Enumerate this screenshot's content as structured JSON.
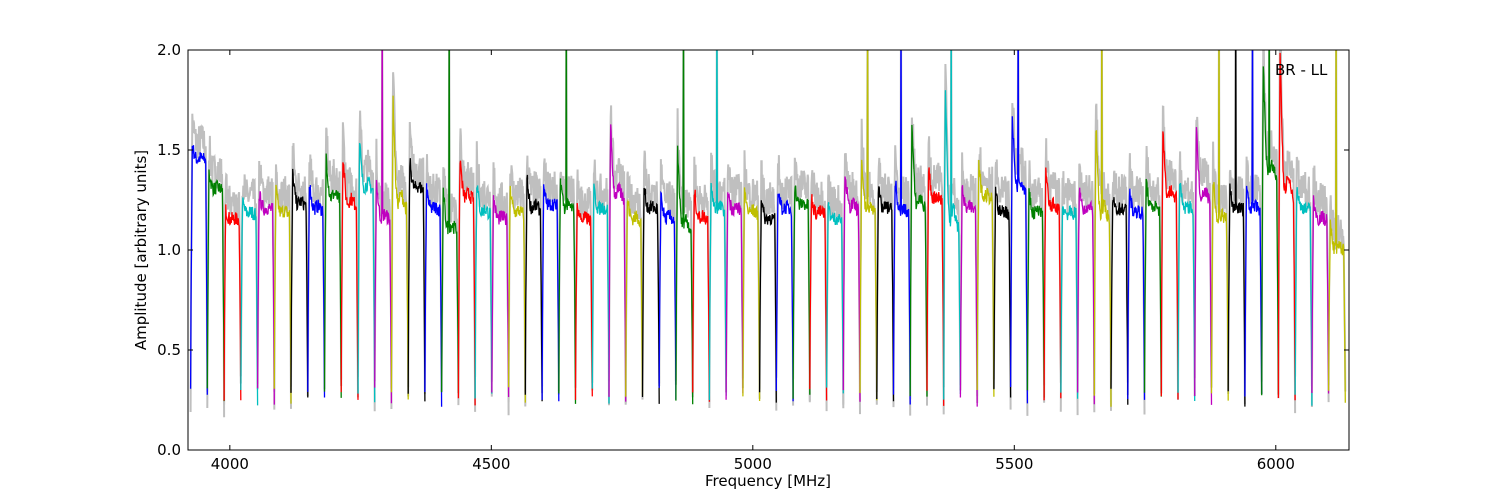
{
  "chart_data": {
    "type": "line",
    "title": "",
    "xlabel": "Frequency [MHz]",
    "ylabel": "Amplitude [arbitrary units]",
    "xlim": [
      3920,
      6140
    ],
    "ylim": [
      0.0,
      2.0
    ],
    "xticks": [
      4000,
      4500,
      5000,
      5500,
      6000
    ],
    "yticks": [
      0.0,
      0.5,
      1.0,
      1.5,
      2.0
    ],
    "ytick_labels": [
      "0.0",
      "0.5",
      "1.0",
      "1.5",
      "2.0"
    ],
    "annotation": "BR - LL",
    "grid": false,
    "legend": "none",
    "channel_width_mhz": 32,
    "envelope_color": "#bfbfbf",
    "series_colors": [
      "#0000ff",
      "#008000",
      "#ff0000",
      "#00bfbf",
      "#bf00bf",
      "#bfbf00",
      "#000000"
    ],
    "channels": [
      {
        "start": 3925,
        "level": 1.45,
        "peak": 1.52,
        "spike": null
      },
      {
        "start": 3957,
        "level": 1.3,
        "peak": 1.39,
        "spike": null
      },
      {
        "start": 3989,
        "level": 1.15,
        "peak": 1.2,
        "spike": null
      },
      {
        "start": 4021,
        "level": 1.18,
        "peak": 1.24,
        "spike": null
      },
      {
        "start": 4053,
        "level": 1.2,
        "peak": 1.28,
        "spike": null
      },
      {
        "start": 4085,
        "level": 1.18,
        "peak": 1.3,
        "spike": null
      },
      {
        "start": 4117,
        "level": 1.22,
        "peak": 1.38,
        "spike": null
      },
      {
        "start": 4149,
        "level": 1.2,
        "peak": 1.33,
        "spike": null
      },
      {
        "start": 4181,
        "level": 1.25,
        "peak": 1.47,
        "spike": null
      },
      {
        "start": 4213,
        "level": 1.22,
        "peak": 1.47,
        "spike": null
      },
      {
        "start": 4245,
        "level": 1.3,
        "peak": 1.53,
        "spike": null
      },
      {
        "start": 4277,
        "level": 1.15,
        "peak": 1.35,
        "spike": 2.0
      },
      {
        "start": 4309,
        "level": 1.2,
        "peak": 1.74,
        "spike": null
      },
      {
        "start": 4341,
        "level": 1.3,
        "peak": 1.44,
        "spike": null
      },
      {
        "start": 4373,
        "level": 1.2,
        "peak": 1.3,
        "spike": null
      },
      {
        "start": 4405,
        "level": 1.1,
        "peak": 1.28,
        "spike": 2.0
      },
      {
        "start": 4437,
        "level": 1.25,
        "peak": 1.46,
        "spike": null
      },
      {
        "start": 4469,
        "level": 1.18,
        "peak": 1.34,
        "spike": null
      },
      {
        "start": 4501,
        "level": 1.15,
        "peak": 1.26,
        "spike": null
      },
      {
        "start": 4533,
        "level": 1.18,
        "peak": 1.3,
        "spike": null
      },
      {
        "start": 4565,
        "level": 1.2,
        "peak": 1.36,
        "spike": null
      },
      {
        "start": 4597,
        "level": 1.22,
        "peak": 1.3,
        "spike": null
      },
      {
        "start": 4629,
        "level": 1.2,
        "peak": 1.35,
        "spike": 2.0
      },
      {
        "start": 4661,
        "level": 1.15,
        "peak": 1.22,
        "spike": null
      },
      {
        "start": 4693,
        "level": 1.2,
        "peak": 1.3,
        "spike": null
      },
      {
        "start": 4725,
        "level": 1.25,
        "peak": 1.6,
        "spike": null
      },
      {
        "start": 4757,
        "level": 1.15,
        "peak": 1.25,
        "spike": null
      },
      {
        "start": 4789,
        "level": 1.2,
        "peak": 1.31,
        "spike": null
      },
      {
        "start": 4821,
        "level": 1.15,
        "peak": 1.28,
        "spike": null
      },
      {
        "start": 4853,
        "level": 1.1,
        "peak": 1.5,
        "spike": 2.0
      },
      {
        "start": 4885,
        "level": 1.15,
        "peak": 1.3,
        "spike": null
      },
      {
        "start": 4917,
        "level": 1.2,
        "peak": 1.32,
        "spike": 2.0
      },
      {
        "start": 4949,
        "level": 1.2,
        "peak": 1.3,
        "spike": null
      },
      {
        "start": 4981,
        "level": 1.18,
        "peak": 1.3,
        "spike": null
      },
      {
        "start": 5013,
        "level": 1.15,
        "peak": 1.25,
        "spike": null
      },
      {
        "start": 5045,
        "level": 1.2,
        "peak": 1.3,
        "spike": null
      },
      {
        "start": 5077,
        "level": 1.22,
        "peak": 1.32,
        "spike": null
      },
      {
        "start": 5109,
        "level": 1.18,
        "peak": 1.26,
        "spike": null
      },
      {
        "start": 5141,
        "level": 1.15,
        "peak": 1.22,
        "spike": null
      },
      {
        "start": 5173,
        "level": 1.2,
        "peak": 1.4,
        "spike": null
      },
      {
        "start": 5205,
        "level": 1.18,
        "peak": 1.45,
        "spike": 2.0
      },
      {
        "start": 5237,
        "level": 1.2,
        "peak": 1.3,
        "spike": null
      },
      {
        "start": 5269,
        "level": 1.18,
        "peak": 1.35,
        "spike": 2.0
      },
      {
        "start": 5301,
        "level": 1.2,
        "peak": 1.62,
        "spike": null
      },
      {
        "start": 5333,
        "level": 1.25,
        "peak": 1.4,
        "spike": null
      },
      {
        "start": 5365,
        "level": 1.1,
        "peak": 1.8,
        "spike": 2.0
      },
      {
        "start": 5397,
        "level": 1.2,
        "peak": 1.3,
        "spike": null
      },
      {
        "start": 5429,
        "level": 1.25,
        "peak": 1.42,
        "spike": null
      },
      {
        "start": 5461,
        "level": 1.18,
        "peak": 1.3,
        "spike": null
      },
      {
        "start": 5493,
        "level": 1.3,
        "peak": 1.65,
        "spike": 2.0
      },
      {
        "start": 5525,
        "level": 1.18,
        "peak": 1.28,
        "spike": null
      },
      {
        "start": 5557,
        "level": 1.2,
        "peak": 1.4,
        "spike": null
      },
      {
        "start": 5589,
        "level": 1.18,
        "peak": 1.22,
        "spike": null
      },
      {
        "start": 5621,
        "level": 1.2,
        "peak": 1.3,
        "spike": null
      },
      {
        "start": 5653,
        "level": 1.15,
        "peak": 1.62,
        "spike": 2.0
      },
      {
        "start": 5685,
        "level": 1.2,
        "peak": 1.25,
        "spike": null
      },
      {
        "start": 5717,
        "level": 1.18,
        "peak": 1.3,
        "spike": null
      },
      {
        "start": 5749,
        "level": 1.2,
        "peak": 1.35,
        "spike": null
      },
      {
        "start": 5781,
        "level": 1.25,
        "peak": 1.6,
        "spike": null
      },
      {
        "start": 5813,
        "level": 1.2,
        "peak": 1.33,
        "spike": null
      },
      {
        "start": 5845,
        "level": 1.25,
        "peak": 1.6,
        "spike": null
      },
      {
        "start": 5877,
        "level": 1.15,
        "peak": 1.35,
        "spike": 2.0
      },
      {
        "start": 5909,
        "level": 1.2,
        "peak": 1.3,
        "spike": 2.0
      },
      {
        "start": 5941,
        "level": 1.2,
        "peak": 1.32,
        "spike": 2.0
      },
      {
        "start": 5973,
        "level": 1.35,
        "peak": 1.9,
        "spike": 2.0
      },
      {
        "start": 6005,
        "level": 1.25,
        "peak": 2.0,
        "spike": null
      },
      {
        "start": 6037,
        "level": 1.2,
        "peak": 1.32,
        "spike": null
      },
      {
        "start": 6069,
        "level": 1.15,
        "peak": 1.25,
        "spike": null
      },
      {
        "start": 6101,
        "level": 1.0,
        "peak": 1.12,
        "spike": 2.0
      }
    ]
  }
}
